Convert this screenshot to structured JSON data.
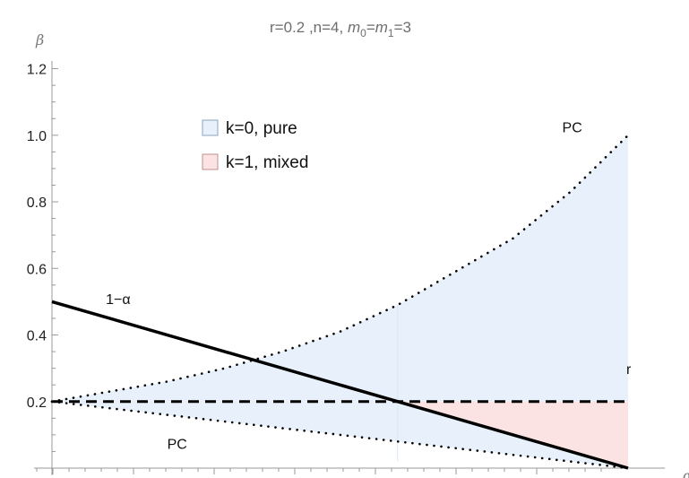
{
  "chart_data": {
    "type": "area",
    "title": "r=0.2 ,n=4, m0=m1=3",
    "title_parts": {
      "lead": "r=0.2 ,n=4, ",
      "m": "m",
      "sub0": "0",
      "eq": "=",
      "sub1": "1",
      "tail": "=3"
    },
    "xlabel": "α",
    "ylabel": "β",
    "xlim": [
      0,
      0.5
    ],
    "ylim": [
      0,
      1.25
    ],
    "y_ticks": [
      "0.2",
      "0.4",
      "0.6",
      "0.8",
      "1.0",
      "1.2"
    ],
    "y_tick_values": [
      0.2,
      0.4,
      0.6,
      0.8,
      1.0,
      1.2
    ],
    "grid": false,
    "legend_position": "top-left",
    "legend": [
      {
        "label": "k=0, pure",
        "color": "#e8f1fb",
        "edge": "#8aa4bf"
      },
      {
        "label": "k=1, mixed",
        "color": "#fbe3e3",
        "edge": "#c08f8f"
      }
    ],
    "series": [
      {
        "name": "1−α",
        "style": "solid-thick",
        "color": "#000000",
        "x": [
          0,
          0.5
        ],
        "y": [
          0.5,
          0.0
        ]
      },
      {
        "name": "r",
        "style": "dashed",
        "color": "#000000",
        "x": [
          0,
          0.5
        ],
        "y": [
          0.2,
          0.2
        ]
      },
      {
        "name": "PC",
        "style": "dotted",
        "color": "#000000",
        "x": [
          0,
          0.05,
          0.1,
          0.15,
          0.2,
          0.25,
          0.3,
          0.35,
          0.4,
          0.45,
          0.5
        ],
        "y": [
          0.2,
          0.23,
          0.26,
          0.3,
          0.35,
          0.41,
          0.49,
          0.59,
          0.69,
          0.83,
          1.0
        ]
      },
      {
        "name": "PC",
        "style": "dotted",
        "color": "#000000",
        "x": [
          0,
          0.05,
          0.1,
          0.15,
          0.2,
          0.25,
          0.3,
          0.35,
          0.4,
          0.45,
          0.5
        ],
        "y": [
          0.2,
          0.18,
          0.16,
          0.14,
          0.12,
          0.1,
          0.08,
          0.06,
          0.04,
          0.02,
          0.0
        ]
      }
    ],
    "annotations": [
      {
        "text": "1−α",
        "x": 0.025,
        "y": 0.52
      },
      {
        "text": "PC",
        "x": 0.46,
        "y": 1.03
      },
      {
        "text": "PC",
        "x": 0.1,
        "y": 0.09
      },
      {
        "text": "r",
        "x": 0.5,
        "y": 0.24
      }
    ]
  }
}
